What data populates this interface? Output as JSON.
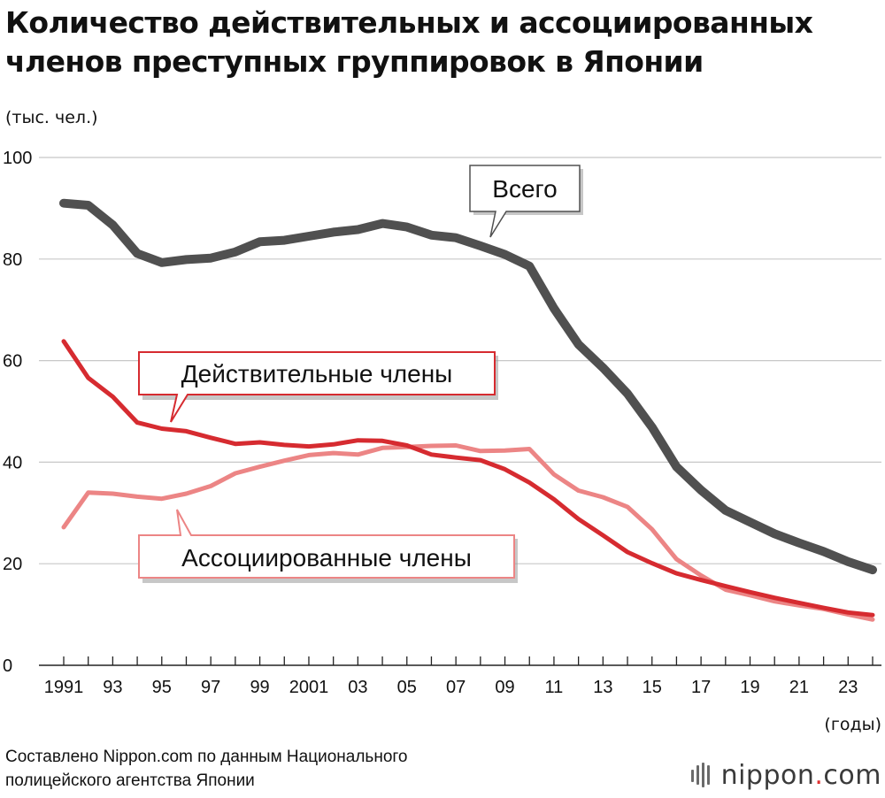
{
  "header": {
    "title_line1": "Количество действительных и ассоциированных",
    "title_line2": "членов преступных группировок в Японии"
  },
  "footer": {
    "source_line1": "Составлено Nippon.com по данным Национального",
    "source_line2": "полицейского агентства Японии",
    "logo_word": "nippon",
    "logo_dot": ".",
    "logo_tld": "com"
  },
  "colors": {
    "total": "#505050",
    "regular": "#d62b30",
    "associate": "#ec8585",
    "grid": "#c8c8c8"
  },
  "chart_data": {
    "type": "line",
    "title": "Количество действительных и ассоциированных членов преступных группировок в Японии",
    "ylabel": "(тыс. чел.)",
    "xlabel": "(годы)",
    "ylim": [
      0,
      100
    ],
    "yticks": [
      0,
      20,
      40,
      60,
      80,
      100
    ],
    "grid": true,
    "x": [
      1991,
      1992,
      1993,
      1994,
      1995,
      1996,
      1997,
      1998,
      1999,
      2000,
      2001,
      2002,
      2003,
      2004,
      2005,
      2006,
      2007,
      2008,
      2009,
      2010,
      2011,
      2012,
      2013,
      2014,
      2015,
      2016,
      2017,
      2018,
      2019,
      2020,
      2021,
      2022,
      2023,
      2024
    ],
    "xtick_labels": [
      "1991",
      "93",
      "95",
      "97",
      "99",
      "2001",
      "03",
      "05",
      "07",
      "09",
      "11",
      "13",
      "15",
      "17",
      "19",
      "21",
      "23"
    ],
    "series": [
      {
        "name": "Всего",
        "color": "total",
        "values": [
          91.0,
          90.6,
          86.7,
          81.1,
          79.3,
          79.9,
          80.2,
          81.4,
          83.4,
          83.7,
          84.5,
          85.3,
          85.8,
          87.0,
          86.3,
          84.7,
          84.2,
          82.6,
          80.9,
          78.6,
          70.3,
          63.2,
          58.6,
          53.5,
          46.9,
          39.1,
          34.5,
          30.5,
          28.2,
          25.9,
          24.1,
          22.4,
          20.4,
          18.8
        ],
        "callout": "Всего"
      },
      {
        "name": "Действительные члены",
        "color": "regular",
        "values": [
          63.8,
          56.6,
          52.9,
          47.8,
          46.6,
          46.1,
          44.8,
          43.6,
          43.9,
          43.4,
          43.1,
          43.5,
          44.3,
          44.2,
          43.3,
          41.5,
          40.9,
          40.4,
          38.6,
          36.0,
          32.7,
          28.8,
          25.6,
          22.3,
          20.1,
          18.1,
          16.8,
          15.6,
          14.4,
          13.3,
          12.3,
          11.3,
          10.4,
          9.9
        ],
        "callout": "Действительные члены"
      },
      {
        "name": "Ассоциированные члены",
        "color": "associate",
        "values": [
          27.2,
          34.0,
          33.8,
          33.2,
          32.8,
          33.8,
          35.3,
          37.8,
          39.1,
          40.3,
          41.4,
          41.8,
          41.5,
          42.8,
          43.0,
          43.2,
          43.3,
          42.2,
          42.3,
          42.6,
          37.6,
          34.4,
          33.1,
          31.2,
          26.8,
          20.9,
          17.7,
          14.9,
          13.8,
          12.6,
          11.8,
          11.1,
          10.0,
          9.0
        ],
        "callout": "Ассоциированные члены"
      }
    ]
  }
}
